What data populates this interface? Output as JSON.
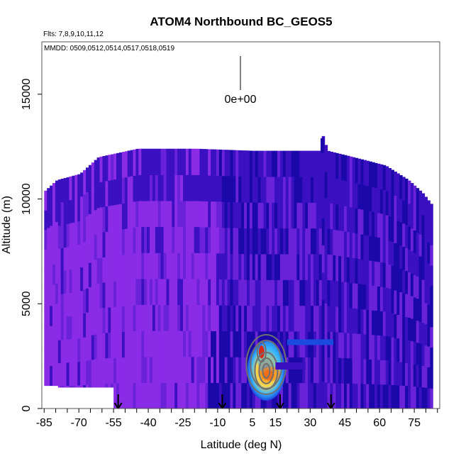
{
  "chart_data": {
    "type": "heatmap",
    "title": "ATOM4 Northbound BC_GEOS5",
    "flights_note": "Flts: 7,8,9,10,11,12",
    "dates_note": "MMDD: 0509,0512,0514,0517,0518,0519",
    "scale_label": "0e+00",
    "xlabel": "Latitude (deg N)",
    "ylabel": "Altitude (m)",
    "xlim": [
      -86,
      86
    ],
    "ylim": [
      0,
      17500
    ],
    "x_ticks": [
      -85,
      -70,
      -55,
      -40,
      -25,
      -10,
      5,
      15,
      30,
      45,
      60,
      75
    ],
    "x_tick_labels": [
      "-85",
      "-70",
      "-55",
      "-40",
      "-25",
      "-10",
      "5",
      "15",
      "30",
      "45",
      "60",
      "75"
    ],
    "y_ticks": [
      0,
      5000,
      10000,
      15000
    ],
    "y_tick_labels": [
      "0",
      "5000",
      "10000",
      "15000"
    ],
    "flight_arrows_lat": [
      -53,
      -8,
      17,
      39
    ],
    "curtain_top": [
      {
        "lat": -85,
        "alt": 10400
      },
      {
        "lat": -80,
        "alt": 10900
      },
      {
        "lat": -70,
        "alt": 11200
      },
      {
        "lat": -62,
        "alt": 12000
      },
      {
        "lat": -45,
        "alt": 12400
      },
      {
        "lat": -20,
        "alt": 12400
      },
      {
        "lat": 5,
        "alt": 12300
      },
      {
        "lat": 25,
        "alt": 12300
      },
      {
        "lat": 34,
        "alt": 12300
      },
      {
        "lat": 35,
        "alt": 13000
      },
      {
        "lat": 37,
        "alt": 12300
      },
      {
        "lat": 48,
        "alt": 12000
      },
      {
        "lat": 62,
        "alt": 11600
      },
      {
        "lat": 72,
        "alt": 10900
      },
      {
        "lat": 78,
        "alt": 10300
      },
      {
        "lat": 83,
        "alt": 9600
      }
    ],
    "plume": {
      "lat": 10,
      "alt": 1800,
      "peak_alt": 2700
    },
    "colors": {
      "violet": "#8a2be6",
      "purple": "#6a22d8",
      "indigo": "#3a10c0",
      "navy": "#1a08a8",
      "blue": "#1a4ae0",
      "cyan": "#35b5ff",
      "yellow": "#ffd84a",
      "orange": "#ff8c1a",
      "red": "#d62a1a",
      "contour": "#707070"
    }
  }
}
